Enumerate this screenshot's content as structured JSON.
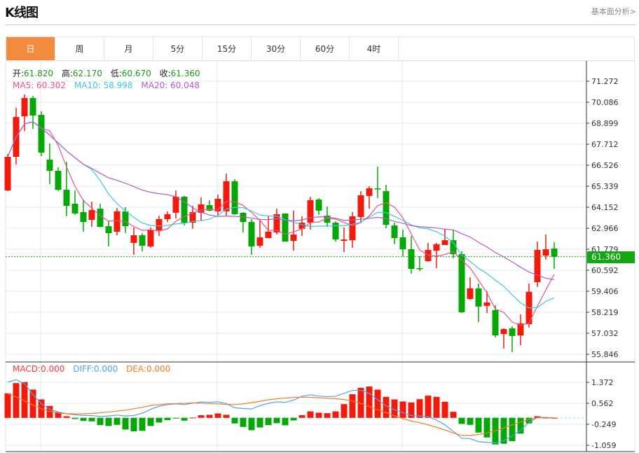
{
  "header": {
    "title": "K线图",
    "fundamental_link": "基本面分析>"
  },
  "tabs": [
    {
      "label": "日",
      "active": true
    },
    {
      "label": "周"
    },
    {
      "label": "月"
    },
    {
      "label": "5分"
    },
    {
      "label": "15分"
    },
    {
      "label": "30分"
    },
    {
      "label": "60分"
    },
    {
      "label": "4时"
    }
  ],
  "ohlc_legend": {
    "open_label": "开:",
    "open": "61.820",
    "high_label": "高:",
    "high": "62.170",
    "low_label": "低:",
    "low": "60.670",
    "close_label": "收:",
    "close": "61.360"
  },
  "ma_legend": {
    "ma5": "MA5: 60.302",
    "ma10": "MA10: 58.998",
    "ma20": "MA20: 60.048"
  },
  "macd_legend": {
    "macd": "MACD:0.000",
    "diff": "DIFF:0.000",
    "dea": "DEA:0.000"
  },
  "current_price": "61.360",
  "colors": {
    "up": "#F21A0A",
    "down": "#04A804",
    "ma5": "#F0508A",
    "ma10": "#3CC8DE",
    "ma20": "#B05CC8",
    "diff": "#4BA4F0",
    "dea": "#F57A20",
    "active_tab": "#F38B3E",
    "macd_label": "#F03A3A"
  },
  "chart_data": {
    "type": "candlestick",
    "price_ticks": [
      "71.272",
      "70.086",
      "68.899",
      "67.712",
      "66.526",
      "65.339",
      "64.152",
      "62.966",
      "61.779",
      "60.592",
      "59.406",
      "58.219",
      "57.032",
      "55.846"
    ],
    "price_range": [
      55.846,
      71.272
    ],
    "candles": [
      [
        65.1,
        67.16,
        65.06,
        67.0
      ],
      [
        67.0,
        69.77,
        66.57,
        69.25
      ],
      [
        69.29,
        70.52,
        68.46,
        70.32
      ],
      [
        70.32,
        70.44,
        68.58,
        69.33
      ],
      [
        69.37,
        69.57,
        67.04,
        67.24
      ],
      [
        66.84,
        67.75,
        65.46,
        66.21
      ],
      [
        66.21,
        66.41,
        65.06,
        65.14
      ],
      [
        65.14,
        66.72,
        63.64,
        64.23
      ],
      [
        64.35,
        65.1,
        63.72,
        63.8
      ],
      [
        63.88,
        64.59,
        62.77,
        63.32
      ],
      [
        63.44,
        64.47,
        63.04,
        63.99
      ],
      [
        64.07,
        64.35,
        63.04,
        63.04
      ],
      [
        63.08,
        63.4,
        61.94,
        62.69
      ],
      [
        62.77,
        64.11,
        62.57,
        63.92
      ],
      [
        63.92,
        64.15,
        62.69,
        63.08
      ],
      [
        62.14,
        63.01,
        61.46,
        62.57
      ],
      [
        62.57,
        62.69,
        61.66,
        61.98
      ],
      [
        61.94,
        63.01,
        61.86,
        62.85
      ],
      [
        62.85,
        63.68,
        62.53,
        63.48
      ],
      [
        63.48,
        63.92,
        63.32,
        63.76
      ],
      [
        63.84,
        65.1,
        63.52,
        64.75
      ],
      [
        64.75,
        64.79,
        63.12,
        63.28
      ],
      [
        63.28,
        64.23,
        62.93,
        63.88
      ],
      [
        63.84,
        64.71,
        63.4,
        64.31
      ],
      [
        64.27,
        64.55,
        63.92,
        63.96
      ],
      [
        63.92,
        64.87,
        63.72,
        64.63
      ],
      [
        63.92,
        66.05,
        63.68,
        65.62
      ],
      [
        65.62,
        65.74,
        63.72,
        63.76
      ],
      [
        63.84,
        63.88,
        62.73,
        63.32
      ],
      [
        63.32,
        63.48,
        61.46,
        61.94
      ],
      [
        61.98,
        63.4,
        61.86,
        62.45
      ],
      [
        62.41,
        63.64,
        62.41,
        62.77
      ],
      [
        62.73,
        64.07,
        62.61,
        63.76
      ],
      [
        63.8,
        63.8,
        62.21,
        62.21
      ],
      [
        62.25,
        63.96,
        61.7,
        62.61
      ],
      [
        62.93,
        63.64,
        62.53,
        63.28
      ],
      [
        63.28,
        64.75,
        62.89,
        64.55
      ],
      [
        64.59,
        64.67,
        63.72,
        63.96
      ],
      [
        63.68,
        64.19,
        63.04,
        63.28
      ],
      [
        63.28,
        63.36,
        62.21,
        62.33
      ],
      [
        62.25,
        63.01,
        61.62,
        62.33
      ],
      [
        62.29,
        63.88,
        61.86,
        63.64
      ],
      [
        63.6,
        65.06,
        63.28,
        64.83
      ],
      [
        64.79,
        65.34,
        64.07,
        65.22
      ],
      [
        65.22,
        66.45,
        64.67,
        65.18
      ],
      [
        65.06,
        65.42,
        62.97,
        63.16
      ],
      [
        63.12,
        63.28,
        62.06,
        62.41
      ],
      [
        62.45,
        62.89,
        61.38,
        61.78
      ],
      [
        61.78,
        62.53,
        60.4,
        60.67
      ],
      [
        60.71,
        61.38,
        60.55,
        60.67
      ],
      [
        61.11,
        62.14,
        61.07,
        61.74
      ],
      [
        61.7,
        62.14,
        60.71,
        62.06
      ],
      [
        62.02,
        62.89,
        62.02,
        62.29
      ],
      [
        62.29,
        62.89,
        61.27,
        61.5
      ],
      [
        61.5,
        61.66,
        58.18,
        58.22
      ],
      [
        58.97,
        60.2,
        58.93,
        59.57
      ],
      [
        59.57,
        59.84,
        57.67,
        58.54
      ],
      [
        58.58,
        59.41,
        58.18,
        58.77
      ],
      [
        58.34,
        58.62,
        56.8,
        56.91
      ],
      [
        56.99,
        57.31,
        56.17,
        57.27
      ],
      [
        57.31,
        57.43,
        55.97,
        56.88
      ],
      [
        56.91,
        58.1,
        56.36,
        57.59
      ],
      [
        57.55,
        59.84,
        57.35,
        59.37
      ],
      [
        59.92,
        62.21,
        59.65,
        61.74
      ],
      [
        61.42,
        62.61,
        61.19,
        61.78
      ],
      [
        61.82,
        62.17,
        60.67,
        61.36
      ]
    ],
    "macd_ticks": [
      "1.372",
      "0.562",
      "-0.249",
      "-1.059"
    ],
    "macd_range": [
      -1.059,
      1.372
    ],
    "macd_hist": [
      0.945,
      1.34,
      1.38,
      1.09,
      0.71,
      0.46,
      0.225,
      0.063,
      -0.045,
      -0.117,
      -0.135,
      -0.28,
      -0.315,
      -0.27,
      -0.45,
      -0.52,
      -0.5,
      -0.315,
      -0.18,
      -0.09,
      -0.027,
      -0.108,
      0.01,
      0.1,
      0.117,
      0.17,
      0.117,
      -0.216,
      -0.35,
      -0.477,
      -0.37,
      -0.28,
      -0.207,
      -0.288,
      -0.1,
      0.1,
      0.25,
      0.198,
      0.18,
      0.25,
      0.53,
      0.91,
      1.16,
      1.21,
      1.09,
      0.81,
      0.71,
      0.63,
      0.594,
      0.72,
      0.855,
      0.81,
      0.62,
      0.234,
      -0.234,
      -0.27,
      -0.567,
      -0.756,
      -1.026,
      -1.0,
      -0.9,
      -0.61,
      -0.216,
      0.063,
      0.005,
      0
    ],
    "diff": [
      1.377,
      1.47,
      1.32,
      0.9,
      0.54,
      0.33,
      0.225,
      0.16,
      0.117,
      0.09,
      0.09,
      0.054,
      0.072,
      0.108,
      0.072,
      0.09,
      0.18,
      0.33,
      0.45,
      0.51,
      0.54,
      0.51,
      0.567,
      0.61,
      0.6,
      0.62,
      0.55,
      0.387,
      0.36,
      0.342,
      0.468,
      0.558,
      0.62,
      0.6,
      0.684,
      0.83,
      0.89,
      0.84,
      0.82,
      0.83,
      0.945,
      1.06,
      1.06,
      0.945,
      0.7,
      0.46,
      0.315,
      0.198,
      0.09,
      0.072,
      0.045,
      -0.09,
      -0.27,
      -0.52,
      -0.79,
      -0.8,
      -0.92,
      -0.945,
      -0.97,
      -0.88,
      -0.69,
      -0.477,
      -0.18,
      0.018,
      0.018,
      0
    ],
    "dea": [
      0.93,
      0.81,
      0.657,
      0.495,
      0.35,
      0.25,
      0.19,
      0.16,
      0.153,
      0.153,
      0.17,
      0.198,
      0.225,
      0.26,
      0.297,
      0.35,
      0.405,
      0.477,
      0.51,
      0.54,
      0.55,
      0.558,
      0.576,
      0.567,
      0.55,
      0.54,
      0.52,
      0.51,
      0.54,
      0.585,
      0.64,
      0.693,
      0.738,
      0.765,
      0.79,
      0.8,
      0.79,
      0.774,
      0.756,
      0.738,
      0.71,
      0.648,
      0.558,
      0.44,
      0.315,
      0.198,
      0.072,
      -0.027,
      -0.126,
      -0.19,
      -0.27,
      -0.36,
      -0.468,
      -0.585,
      -0.675,
      -0.684,
      -0.64,
      -0.585,
      -0.495,
      -0.387,
      -0.27,
      -0.162,
      -0.063,
      0,
      0,
      0
    ]
  }
}
